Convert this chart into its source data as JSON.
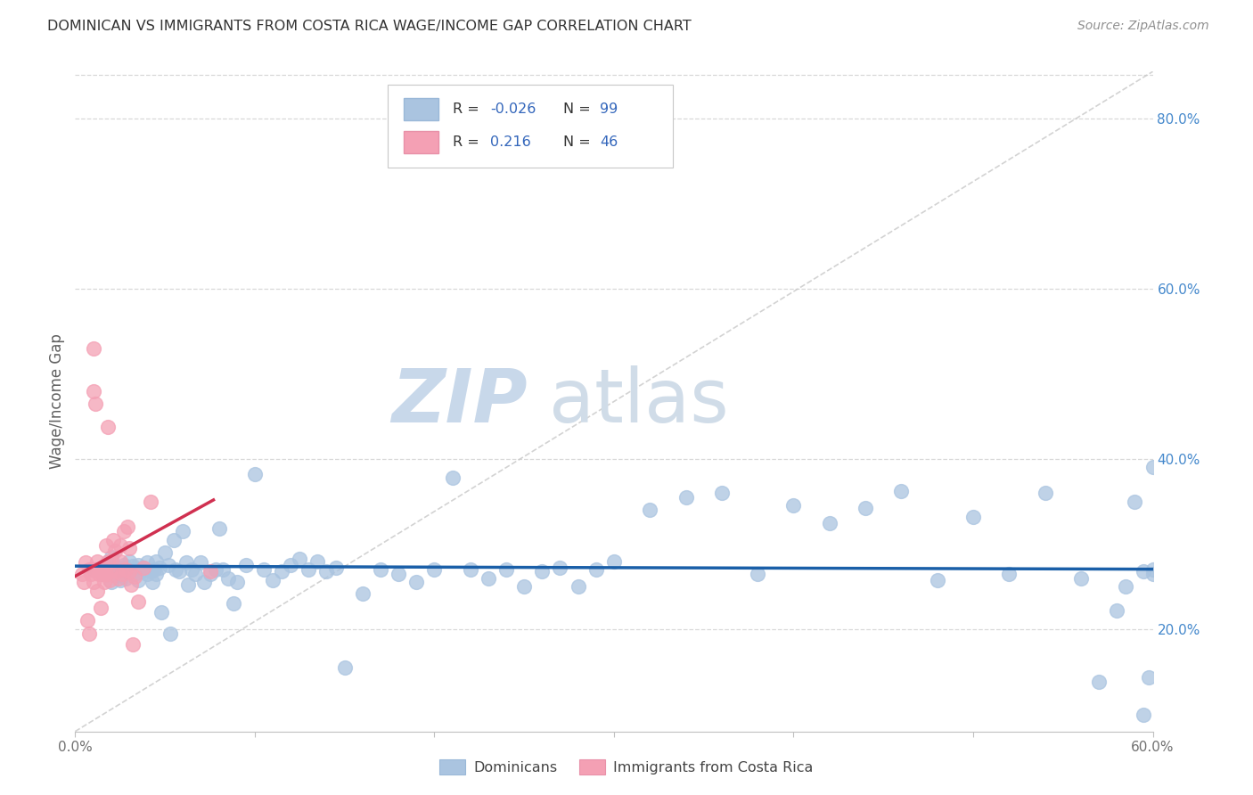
{
  "title": "DOMINICAN VS IMMIGRANTS FROM COSTA RICA WAGE/INCOME GAP CORRELATION CHART",
  "source": "Source: ZipAtlas.com",
  "ylabel": "Wage/Income Gap",
  "legend_blue_label": "Dominicans",
  "legend_pink_label": "Immigrants from Costa Rica",
  "R_blue": -0.026,
  "N_blue": 99,
  "R_pink": 0.216,
  "N_pink": 46,
  "x_min": 0.0,
  "x_max": 0.6,
  "y_min": 0.08,
  "y_max": 0.855,
  "right_yticks": [
    0.2,
    0.4,
    0.6,
    0.8
  ],
  "right_ytick_labels": [
    "20.0%",
    "40.0%",
    "60.0%",
    "80.0%"
  ],
  "blue_color": "#aac4e0",
  "pink_color": "#f4a0b4",
  "trend_blue_color": "#1a5fa8",
  "trend_pink_color": "#d03050",
  "diag_color": "#c8c8c8",
  "watermark_zip_color": "#c8d8ea",
  "watermark_atlas_color": "#d0dce8",
  "title_color": "#333333",
  "source_color": "#909090",
  "axis_label_color": "#606060",
  "right_tick_color": "#4488cc",
  "legend_R_N_color": "#3366bb",
  "background_color": "#ffffff",
  "grid_color": "#d8d8d8",
  "blue_scatter_x": [
    0.01,
    0.015,
    0.018,
    0.02,
    0.02,
    0.022,
    0.023,
    0.025,
    0.025,
    0.027,
    0.028,
    0.03,
    0.03,
    0.032,
    0.033,
    0.034,
    0.035,
    0.035,
    0.037,
    0.038,
    0.04,
    0.04,
    0.042,
    0.043,
    0.044,
    0.045,
    0.045,
    0.047,
    0.048,
    0.05,
    0.052,
    0.053,
    0.055,
    0.056,
    0.058,
    0.06,
    0.062,
    0.063,
    0.065,
    0.067,
    0.07,
    0.072,
    0.075,
    0.078,
    0.08,
    0.082,
    0.085,
    0.088,
    0.09,
    0.095,
    0.1,
    0.105,
    0.11,
    0.115,
    0.12,
    0.125,
    0.13,
    0.135,
    0.14,
    0.145,
    0.15,
    0.16,
    0.17,
    0.18,
    0.19,
    0.2,
    0.21,
    0.22,
    0.23,
    0.24,
    0.25,
    0.26,
    0.27,
    0.28,
    0.29,
    0.3,
    0.32,
    0.34,
    0.36,
    0.38,
    0.4,
    0.42,
    0.44,
    0.46,
    0.48,
    0.5,
    0.52,
    0.54,
    0.56,
    0.57,
    0.58,
    0.585,
    0.59,
    0.595,
    0.595,
    0.598,
    0.6,
    0.6,
    0.6
  ],
  "blue_scatter_y": [
    0.27,
    0.265,
    0.278,
    0.255,
    0.285,
    0.27,
    0.263,
    0.272,
    0.258,
    0.275,
    0.26,
    0.268,
    0.28,
    0.274,
    0.265,
    0.27,
    0.275,
    0.258,
    0.268,
    0.272,
    0.265,
    0.278,
    0.268,
    0.255,
    0.27,
    0.28,
    0.265,
    0.272,
    0.22,
    0.29,
    0.275,
    0.195,
    0.305,
    0.27,
    0.268,
    0.315,
    0.278,
    0.252,
    0.27,
    0.265,
    0.278,
    0.255,
    0.265,
    0.27,
    0.318,
    0.27,
    0.26,
    0.23,
    0.255,
    0.275,
    0.382,
    0.27,
    0.258,
    0.268,
    0.275,
    0.283,
    0.27,
    0.28,
    0.268,
    0.272,
    0.155,
    0.242,
    0.27,
    0.265,
    0.255,
    0.27,
    0.378,
    0.27,
    0.26,
    0.27,
    0.25,
    0.268,
    0.272,
    0.25,
    0.27,
    0.28,
    0.34,
    0.355,
    0.36,
    0.265,
    0.345,
    0.325,
    0.342,
    0.362,
    0.258,
    0.332,
    0.265,
    0.36,
    0.26,
    0.138,
    0.222,
    0.25,
    0.35,
    0.268,
    0.1,
    0.143,
    0.39,
    0.265,
    0.27
  ],
  "pink_scatter_x": [
    0.004,
    0.005,
    0.006,
    0.007,
    0.008,
    0.008,
    0.009,
    0.01,
    0.01,
    0.01,
    0.011,
    0.011,
    0.012,
    0.012,
    0.013,
    0.014,
    0.015,
    0.015,
    0.016,
    0.016,
    0.017,
    0.017,
    0.018,
    0.018,
    0.019,
    0.019,
    0.02,
    0.021,
    0.022,
    0.023,
    0.024,
    0.025,
    0.025,
    0.026,
    0.027,
    0.028,
    0.029,
    0.03,
    0.03,
    0.031,
    0.032,
    0.033,
    0.035,
    0.038,
    0.042,
    0.075
  ],
  "pink_scatter_y": [
    0.265,
    0.255,
    0.278,
    0.21,
    0.27,
    0.195,
    0.265,
    0.255,
    0.48,
    0.53,
    0.27,
    0.465,
    0.245,
    0.28,
    0.265,
    0.225,
    0.265,
    0.268,
    0.255,
    0.272,
    0.265,
    0.298,
    0.28,
    0.438,
    0.268,
    0.258,
    0.28,
    0.305,
    0.292,
    0.268,
    0.26,
    0.28,
    0.298,
    0.265,
    0.315,
    0.27,
    0.32,
    0.295,
    0.268,
    0.252,
    0.182,
    0.262,
    0.232,
    0.272,
    0.35,
    0.268
  ]
}
